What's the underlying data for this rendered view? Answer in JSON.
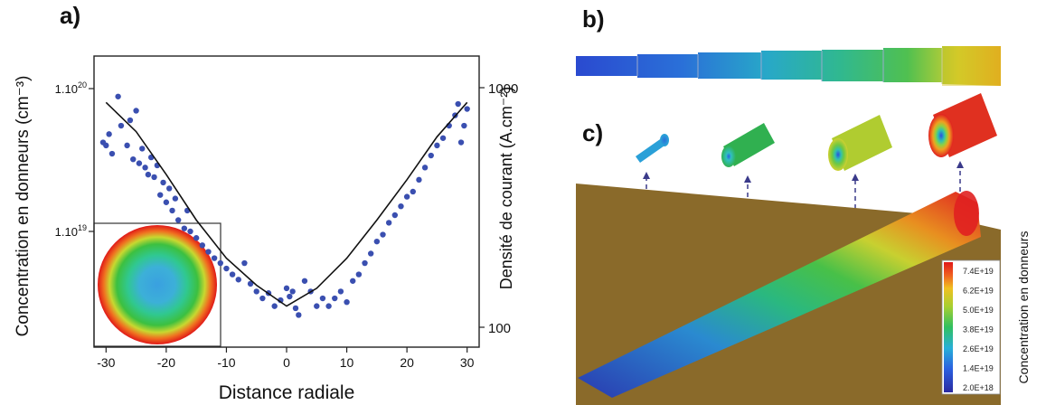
{
  "panels": {
    "a": "a)",
    "b": "b)",
    "c": "c)"
  },
  "colors": {
    "dots": "#3a4fb0",
    "fit": "#111111",
    "surface": "#8a6a2a"
  },
  "chart_data": {
    "type": "scatter",
    "xlabel": "Distance radiale",
    "ylabel": "Concentration en donneurs (cm⁻³)",
    "ylabel_right": "Densité de courant (A.cm⁻²)",
    "xlim": [
      -32,
      32
    ],
    "xticks": [
      -30,
      -20,
      -10,
      0,
      10,
      20,
      30
    ],
    "yscale": "log",
    "yticks_left": [
      {
        "value": 1e+20,
        "label": "1.10",
        "exp": "20"
      },
      {
        "value": 1e+19,
        "label": "1.10",
        "exp": "19"
      }
    ],
    "yticks_right": [
      "1000",
      "100"
    ],
    "grid": false,
    "inset": "radial colour map of donor concentration",
    "points": [
      [
        -30.5,
        4.2e+19
      ],
      [
        -30,
        4e+19
      ],
      [
        -29.5,
        4.8e+19
      ],
      [
        -29,
        3.5e+19
      ],
      [
        -28,
        8.8e+19
      ],
      [
        -27.5,
        5.5e+19
      ],
      [
        -26.5,
        4e+19
      ],
      [
        -26,
        6e+19
      ],
      [
        -25.5,
        3.2e+19
      ],
      [
        -25,
        7e+19
      ],
      [
        -24.5,
        3e+19
      ],
      [
        -24,
        3.8e+19
      ],
      [
        -23.5,
        2.8e+19
      ],
      [
        -23,
        2.5e+19
      ],
      [
        -22.5,
        3.3e+19
      ],
      [
        -22,
        2.4e+19
      ],
      [
        -21.5,
        2.9e+19
      ],
      [
        -21,
        1.8e+19
      ],
      [
        -20.5,
        2.2e+19
      ],
      [
        -20,
        1.6e+19
      ],
      [
        -19.5,
        2e+19
      ],
      [
        -19,
        1.4e+19
      ],
      [
        -18.5,
        1.7e+19
      ],
      [
        -18,
        1.2e+19
      ],
      [
        -17,
        1.05e+19
      ],
      [
        -16.5,
        1.4e+19
      ],
      [
        -16,
        1e+19
      ],
      [
        -15,
        9e+18
      ],
      [
        -14,
        8e+18
      ],
      [
        -13,
        7.2e+18
      ],
      [
        -12,
        6.5e+18
      ],
      [
        -11,
        6e+18
      ],
      [
        -10,
        5.5e+18
      ],
      [
        -9,
        5e+18
      ],
      [
        -8,
        4.6e+18
      ],
      [
        -7,
        6e+18
      ],
      [
        -6,
        4.3e+18
      ],
      [
        -5,
        3.8e+18
      ],
      [
        -4,
        3.4e+18
      ],
      [
        -3,
        3.7e+18
      ],
      [
        -2,
        3e+18
      ],
      [
        -1,
        3.3e+18
      ],
      [
        0,
        4e+18
      ],
      [
        0.5,
        3.5e+18
      ],
      [
        1,
        3.8e+18
      ],
      [
        1.5,
        2.9e+18
      ],
      [
        2,
        2.6e+18
      ],
      [
        3,
        4.5e+18
      ],
      [
        4,
        3.8e+18
      ],
      [
        5,
        3e+18
      ],
      [
        6,
        3.4e+18
      ],
      [
        7,
        3e+18
      ],
      [
        8,
        3.4e+18
      ],
      [
        9,
        3.8e+18
      ],
      [
        10,
        3.2e+18
      ],
      [
        11,
        4.5e+18
      ],
      [
        12,
        5e+18
      ],
      [
        13,
        6e+18
      ],
      [
        14,
        7e+18
      ],
      [
        15,
        8.5e+18
      ],
      [
        16,
        9.5e+18
      ],
      [
        17,
        1.15e+19
      ],
      [
        18,
        1.3e+19
      ],
      [
        19,
        1.5e+19
      ],
      [
        20,
        1.75e+19
      ],
      [
        21,
        1.9e+19
      ],
      [
        22,
        2.3e+19
      ],
      [
        23,
        2.8e+19
      ],
      [
        24,
        3.4e+19
      ],
      [
        25,
        4e+19
      ],
      [
        26,
        4.5e+19
      ],
      [
        27,
        5.5e+19
      ],
      [
        28,
        6.5e+19
      ],
      [
        28.5,
        7.8e+19
      ],
      [
        29,
        4.2e+19
      ],
      [
        29.5,
        5.5e+19
      ],
      [
        30,
        7.2e+19
      ]
    ],
    "fit": [
      [
        -30,
        8e+19
      ],
      [
        -25,
        5e+19
      ],
      [
        -20,
        2.5e+19
      ],
      [
        -15,
        1.2e+19
      ],
      [
        -10,
        6.5e+18
      ],
      [
        -5,
        4.2e+18
      ],
      [
        0,
        3e+18
      ],
      [
        5,
        4e+18
      ],
      [
        10,
        6.5e+18
      ],
      [
        15,
        1.2e+19
      ],
      [
        20,
        2.3e+19
      ],
      [
        25,
        4.6e+19
      ],
      [
        30,
        8e+19
      ]
    ]
  },
  "colorbar": {
    "title": "Concentration en donneurs",
    "ticks": [
      "7.4E+19",
      "6.2E+19",
      "5.0E+19",
      "3.8E+19",
      "2.6E+19",
      "1.4E+19",
      "2.0E+18"
    ]
  }
}
